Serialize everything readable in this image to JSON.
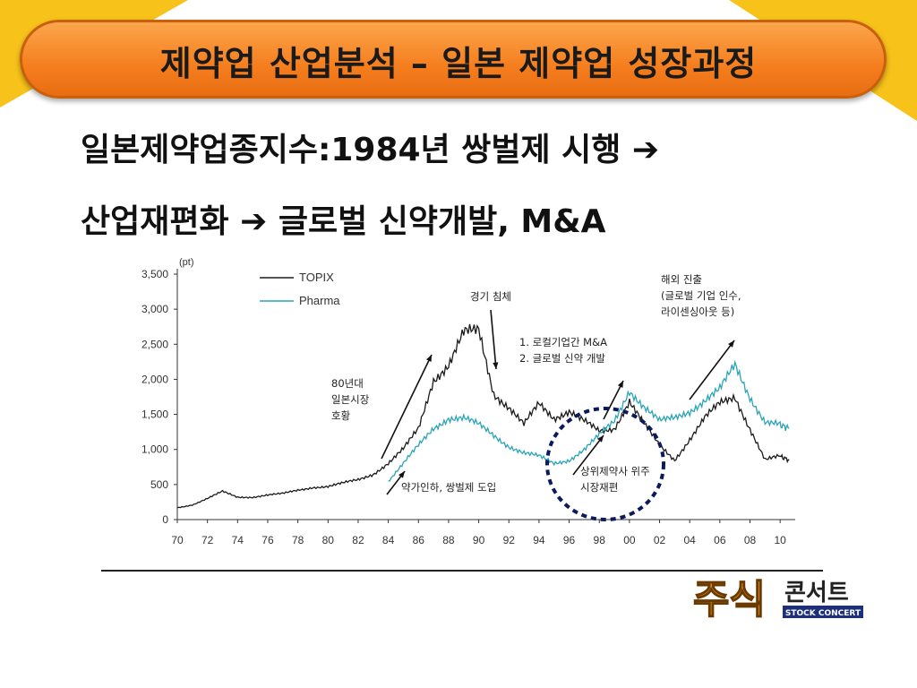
{
  "title": "제약업 산업분석 – 일본 제약업 성장과정",
  "subtitle_line1": "일본제약업종지수:1984년 쌍벌제 시행 ",
  "subtitle_line2_a": "산업재편화 ",
  "subtitle_line2_b": " 글로벌 신약개발, M&A",
  "arrow_glyph": "➔",
  "colors": {
    "accent": "#f57e1e",
    "topix": "#1a1a1a",
    "pharma": "#2aa4b8",
    "highlight": "#0b1a5e"
  },
  "logo": {
    "main": "주식",
    "side": "콘서트",
    "sub": "STOCK CONCERT"
  },
  "chart_data": {
    "type": "line",
    "unit_label": "(pt)",
    "x": [
      70,
      71,
      72,
      73,
      74,
      75,
      76,
      77,
      78,
      79,
      80,
      81,
      82,
      83,
      84,
      85,
      86,
      87,
      88,
      89,
      90,
      91,
      92,
      93,
      94,
      95,
      96,
      97,
      98,
      99,
      100,
      101,
      102,
      103,
      104,
      105,
      106,
      107,
      108,
      109,
      110,
      110.6
    ],
    "xticks": [
      "70",
      "72",
      "74",
      "76",
      "78",
      "80",
      "82",
      "84",
      "86",
      "88",
      "90",
      "92",
      "94",
      "96",
      "98",
      "00",
      "02",
      "04",
      "06",
      "08",
      "10"
    ],
    "yticks": [
      "0",
      "500",
      "1,000",
      "1,500",
      "2,000",
      "2,500",
      "3,000",
      "3,500"
    ],
    "ylim": [
      0,
      3500
    ],
    "series": [
      {
        "name": "TOPIX",
        "color": "#1a1a1a",
        "values": [
          170,
          210,
          300,
          400,
          320,
          320,
          350,
          370,
          420,
          460,
          470,
          520,
          570,
          650,
          800,
          1000,
          1300,
          2000,
          2200,
          2650,
          2700,
          1800,
          1600,
          1350,
          1650,
          1450,
          1550,
          1400,
          1250,
          1300,
          1700,
          1350,
          1050,
          850,
          1150,
          1450,
          1650,
          1750,
          1300,
          850,
          900,
          850
        ]
      },
      {
        "name": "Pharma",
        "color": "#2aa4b8",
        "values": [
          null,
          null,
          null,
          null,
          null,
          null,
          null,
          null,
          null,
          null,
          null,
          null,
          null,
          null,
          550,
          800,
          1050,
          1300,
          1450,
          1450,
          1350,
          1200,
          1050,
          950,
          900,
          800,
          850,
          1000,
          1200,
          1400,
          1850,
          1600,
          1400,
          1450,
          1550,
          1700,
          1850,
          2200,
          1750,
          1400,
          1350,
          1300
        ]
      }
    ],
    "annotations": [
      {
        "id": "a80s",
        "lines": [
          "80년대",
          "일본시장",
          "호황"
        ]
      },
      {
        "id": "yakga",
        "lines": [
          "약가인하, 쌍벌제 도입"
        ]
      },
      {
        "id": "gyeonggi",
        "lines": [
          "경기 침체"
        ]
      },
      {
        "id": "ma",
        "lines": [
          "1. 로컬기업간 M&A",
          "2. 글로벌 신약 개발"
        ]
      },
      {
        "id": "sangwi",
        "lines": [
          "상위제약사 위주",
          "시장재편"
        ]
      },
      {
        "id": "haeoe",
        "lines": [
          "해외 진출",
          "(글로벌 기업 인수,",
          "라이센싱아웃 등)"
        ]
      }
    ]
  }
}
